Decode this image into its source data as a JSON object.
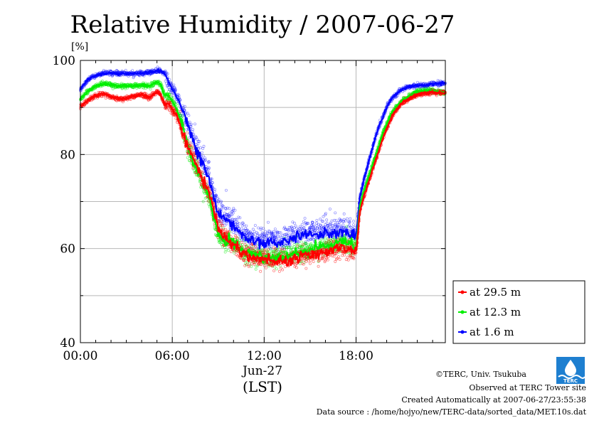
{
  "header": {
    "title": "Relative Humidity / 2007-06-27",
    "unit": "[%]"
  },
  "chart_data": {
    "type": "line",
    "title": "Relative Humidity / 2007-06-27",
    "ylabel": "[%]",
    "xlabel": "Jun-27",
    "xlabel_sub": "(LST)",
    "ylim": [
      40,
      100
    ],
    "xlim_hours": [
      0,
      23.83
    ],
    "y_ticks": [
      "40",
      "60",
      "80",
      "100"
    ],
    "x_ticks": [
      "00:00",
      "06:00",
      "12:00",
      "18:00"
    ],
    "x_tick_hours": [
      0,
      6,
      12,
      18
    ],
    "y_tick_values": [
      40,
      60,
      80,
      100
    ],
    "grid": true,
    "legend_position": "bottom-right outside",
    "x_hours": [
      0,
      0.5,
      1,
      1.5,
      2,
      2.5,
      3,
      3.5,
      4,
      4.5,
      5,
      5.25,
      5.5,
      5.75,
      6,
      6.25,
      6.5,
      6.75,
      7,
      7.25,
      7.5,
      7.75,
      8,
      8.25,
      8.5,
      8.75,
      9,
      9.25,
      9.5,
      9.75,
      10,
      10.25,
      10.5,
      10.75,
      11,
      11.5,
      12,
      12.5,
      13,
      13.5,
      14,
      14.5,
      15,
      15.5,
      16,
      16.5,
      17,
      17.5,
      17.75,
      18,
      18.25,
      18.5,
      18.75,
      19,
      19.25,
      19.5,
      19.75,
      20,
      20.25,
      20.5,
      20.75,
      21,
      21.5,
      22,
      22.5,
      23,
      23.5,
      23.8
    ],
    "series": [
      {
        "name": "at 29.5 m",
        "color": "#ff0000",
        "values": [
          90.2,
          91.5,
          92.5,
          93.0,
          92.3,
          91.8,
          92.0,
          92.4,
          92.8,
          92.0,
          93.4,
          92.6,
          90.6,
          91.0,
          89.5,
          88.5,
          86.5,
          84.0,
          82.0,
          80.0,
          78.5,
          77.0,
          74.5,
          73.0,
          71.0,
          67.5,
          64.5,
          63.0,
          62.0,
          61.5,
          60.5,
          60.5,
          59.0,
          58.8,
          58.5,
          58.0,
          58.0,
          57.3,
          57.5,
          57.2,
          58.0,
          58.5,
          58.6,
          59.0,
          59.3,
          59.7,
          60.0,
          59.7,
          59.5,
          59.0,
          68.0,
          71.0,
          73.5,
          76.0,
          78.5,
          81.0,
          83.5,
          85.5,
          87.5,
          89.0,
          90.0,
          91.0,
          92.0,
          92.8,
          93.0,
          93.3,
          93.1,
          93.2
        ]
      },
      {
        "name": "at 12.3 m",
        "color": "#00ee00",
        "values": [
          91.8,
          93.5,
          94.5,
          95.0,
          94.8,
          94.5,
          94.6,
          94.5,
          94.8,
          94.6,
          95.4,
          94.9,
          92.5,
          92.6,
          91.5,
          89.8,
          87.8,
          84.8,
          82.0,
          79.3,
          77.5,
          76.0,
          73.5,
          72.0,
          70.0,
          66.0,
          63.0,
          62.0,
          61.5,
          61.8,
          61.0,
          61.0,
          59.5,
          59.3,
          59.0,
          58.6,
          58.4,
          58.0,
          58.2,
          58.5,
          58.9,
          59.5,
          59.8,
          60.2,
          60.7,
          61.0,
          61.5,
          61.0,
          61.0,
          60.0,
          69.0,
          72.0,
          74.5,
          77.0,
          79.5,
          82.0,
          84.5,
          86.5,
          88.3,
          89.6,
          90.5,
          91.5,
          92.5,
          93.4,
          93.6,
          93.6,
          93.3,
          93.2
        ]
      },
      {
        "name": "at 1.6 m",
        "color": "#0000ff",
        "values": [
          93.8,
          96.0,
          96.8,
          97.2,
          97.3,
          97.2,
          97.2,
          97.2,
          97.3,
          97.4,
          97.8,
          97.7,
          97.3,
          95.5,
          94.0,
          92.5,
          90.8,
          89.0,
          86.5,
          84.0,
          81.5,
          80.0,
          78.0,
          76.0,
          74.0,
          70.5,
          67.5,
          67.0,
          66.0,
          65.5,
          65.0,
          64.5,
          63.0,
          62.5,
          62.0,
          61.5,
          61.3,
          61.5,
          61.3,
          61.8,
          62.2,
          62.8,
          62.8,
          63.0,
          63.5,
          63.3,
          63.7,
          63.0,
          62.7,
          62.5,
          71.0,
          74.5,
          77.5,
          80.5,
          83.5,
          86.0,
          88.0,
          90.0,
          91.6,
          92.5,
          93.2,
          93.9,
          94.5,
          94.6,
          94.7,
          95.0,
          95.1,
          95.2
        ]
      }
    ]
  },
  "legend": {
    "items": [
      {
        "label": "at 29.5 m",
        "color": "#ff0000"
      },
      {
        "label": "at 12.3 m",
        "color": "#00ee00"
      },
      {
        "label": "at 1.6 m",
        "color": "#0000ff"
      }
    ]
  },
  "footer": {
    "copyright": "©TERC, Univ. Tsukuba",
    "observed": "Observed at TERC Tower site",
    "created": "Created Automatically at 2007-06-27/23:55:38",
    "source": "Data source : /home/hojyo/new/TERC-data/sorted_data/MET.10s.dat",
    "logo_text": "TERC"
  }
}
